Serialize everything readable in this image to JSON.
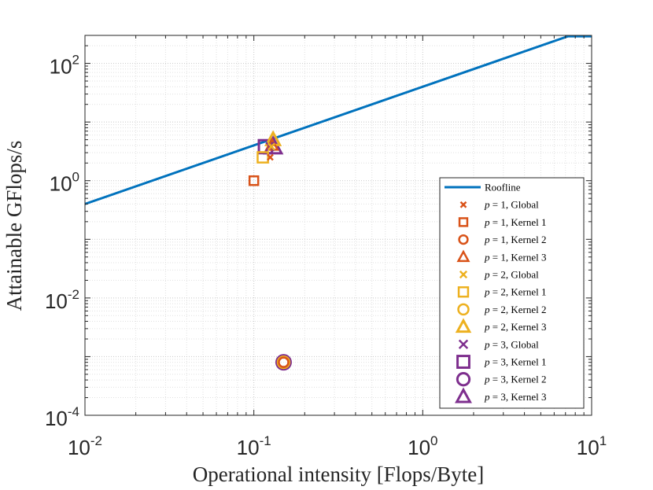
{
  "chart_data": {
    "type": "scatter",
    "scale": "log-log",
    "title": "",
    "xlabel": "Operational intensity [Flops/Byte]",
    "ylabel": "Attainable GFlops/s",
    "xlim": [
      0.01,
      10
    ],
    "ylim": [
      0.0001,
      300
    ],
    "grid": true,
    "x_ticks": [
      {
        "base": "10",
        "exp": "-2"
      },
      {
        "base": "10",
        "exp": "-1"
      },
      {
        "base": "10",
        "exp": "0"
      },
      {
        "base": "10",
        "exp": "1"
      }
    ],
    "y_ticks": [
      {
        "base": "10",
        "exp": "-4"
      },
      {
        "base": "10",
        "exp": "-2"
      },
      {
        "base": "10",
        "exp": "0"
      },
      {
        "base": "10",
        "exp": "2"
      }
    ],
    "x_tick_values": [
      0.01,
      0.1,
      1,
      10
    ],
    "y_tick_values": [
      0.0001,
      0.01,
      1,
      100
    ],
    "roofline": {
      "name": "Roofline",
      "color": "#0072BD",
      "bandwidth_GBps": 40,
      "peak_GFlops": 290,
      "x": [
        0.01,
        7.25,
        10
      ],
      "y": [
        0.4,
        290,
        290
      ]
    },
    "legend_position": "bottom-right",
    "series": [
      {
        "p": "1",
        "name": "Global",
        "marker": "x",
        "color": "#D95319",
        "x": 0.125,
        "y": 2.5
      },
      {
        "p": "1",
        "name": "Kernel 1",
        "marker": "square",
        "color": "#D95319",
        "x": 0.1,
        "y": 1.0
      },
      {
        "p": "1",
        "name": "Kernel 2",
        "marker": "circle",
        "color": "#D95319",
        "x": 0.15,
        "y": 0.0008
      },
      {
        "p": "1",
        "name": "Kernel 3",
        "marker": "triangle",
        "color": "#D95319",
        "x": 0.128,
        "y": 4.0
      },
      {
        "p": "2",
        "name": "Global",
        "marker": "x",
        "color": "#EDB120",
        "x": 0.127,
        "y": 3.8
      },
      {
        "p": "2",
        "name": "Kernel 1",
        "marker": "square",
        "color": "#EDB120",
        "x": 0.113,
        "y": 2.5
      },
      {
        "p": "2",
        "name": "Kernel 2",
        "marker": "circle",
        "color": "#EDB120",
        "x": 0.15,
        "y": 0.0008
      },
      {
        "p": "2",
        "name": "Kernel 3",
        "marker": "triangle",
        "color": "#EDB120",
        "x": 0.13,
        "y": 5.0
      },
      {
        "p": "3",
        "name": "Global",
        "marker": "x",
        "color": "#7E2F8E",
        "x": 0.125,
        "y": 3.8
      },
      {
        "p": "3",
        "name": "Kernel 1",
        "marker": "square",
        "color": "#7E2F8E",
        "x": 0.117,
        "y": 3.8
      },
      {
        "p": "3",
        "name": "Kernel 2",
        "marker": "circle",
        "color": "#7E2F8E",
        "x": 0.15,
        "y": 0.0008
      },
      {
        "p": "3",
        "name": "Kernel 3",
        "marker": "triangle",
        "color": "#7E2F8E",
        "x": 0.13,
        "y": 3.8
      }
    ]
  }
}
